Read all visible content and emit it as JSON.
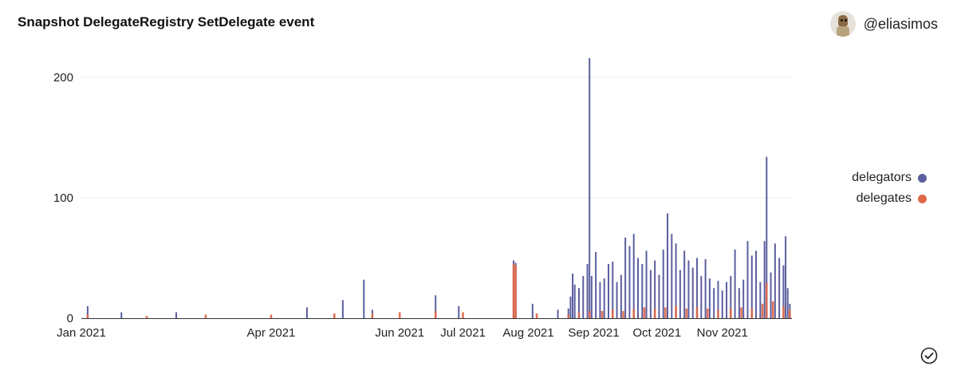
{
  "header": {
    "title": "Snapshot DelegateRegistry SetDelegate event",
    "handle": "@eliasimos"
  },
  "chart_data": {
    "type": "bar",
    "x_range": [
      "2021-01-01",
      "2021-12-04"
    ],
    "ylim": [
      0,
      200
    ],
    "y_ticks": [
      0,
      100,
      200
    ],
    "y_tick_labels": [
      "0",
      "100",
      "200"
    ],
    "x_ticks": [
      "2021-01-01",
      "2021-04-01",
      "2021-06-01",
      "2021-07-01",
      "2021-08-01",
      "2021-09-01",
      "2021-10-01",
      "2021-11-01"
    ],
    "x_tick_labels": [
      "Jan 2021",
      "Apr 2021",
      "Jun 2021",
      "Jul 2021",
      "Aug 2021",
      "Sep 2021",
      "Oct 2021",
      "Nov 2021"
    ],
    "grid": true,
    "legend_position": "right",
    "series": [
      {
        "name": "delegators",
        "color": "#5b5f9f",
        "x": [
          "2021-01-04",
          "2021-01-20",
          "2021-02-15",
          "2021-04-18",
          "2021-05-05",
          "2021-05-15",
          "2021-05-19",
          "2021-06-18",
          "2021-06-29",
          "2021-07-25",
          "2021-07-26",
          "2021-08-03",
          "2021-08-15",
          "2021-08-20",
          "2021-08-21",
          "2021-08-22",
          "2021-08-23",
          "2021-08-25",
          "2021-08-27",
          "2021-08-29",
          "2021-08-30",
          "2021-08-31",
          "2021-09-02",
          "2021-09-04",
          "2021-09-06",
          "2021-09-08",
          "2021-09-10",
          "2021-09-12",
          "2021-09-14",
          "2021-09-16",
          "2021-09-18",
          "2021-09-20",
          "2021-09-22",
          "2021-09-24",
          "2021-09-26",
          "2021-09-28",
          "2021-09-30",
          "2021-10-02",
          "2021-10-04",
          "2021-10-06",
          "2021-10-08",
          "2021-10-10",
          "2021-10-12",
          "2021-10-14",
          "2021-10-16",
          "2021-10-18",
          "2021-10-20",
          "2021-10-22",
          "2021-10-24",
          "2021-10-26",
          "2021-10-28",
          "2021-10-30",
          "2021-11-01",
          "2021-11-03",
          "2021-11-05",
          "2021-11-07",
          "2021-11-09",
          "2021-11-11",
          "2021-11-13",
          "2021-11-15",
          "2021-11-17",
          "2021-11-19",
          "2021-11-21",
          "2021-11-22",
          "2021-11-24",
          "2021-11-26",
          "2021-11-28",
          "2021-11-30",
          "2021-12-01",
          "2021-12-02",
          "2021-12-03"
        ],
        "values": [
          10,
          5,
          5,
          9,
          15,
          32,
          7,
          19,
          10,
          48,
          46,
          12,
          7,
          8,
          18,
          37,
          28,
          25,
          35,
          45,
          216,
          35,
          55,
          30,
          33,
          45,
          47,
          30,
          36,
          67,
          60,
          70,
          50,
          45,
          56,
          40,
          48,
          36,
          57,
          87,
          70,
          62,
          40,
          56,
          48,
          42,
          50,
          35,
          49,
          33,
          25,
          31,
          23,
          30,
          35,
          57,
          25,
          32,
          64,
          52,
          56,
          30,
          64,
          134,
          38,
          62,
          50,
          44,
          68,
          25,
          12
        ]
      },
      {
        "name": "delegates",
        "color": "#e0694a",
        "x": [
          "2021-01-04",
          "2021-02-01",
          "2021-03-01",
          "2021-04-01",
          "2021-05-01",
          "2021-05-19",
          "2021-06-01",
          "2021-06-18",
          "2021-07-01",
          "2021-07-25",
          "2021-07-26",
          "2021-08-05",
          "2021-08-20",
          "2021-08-25",
          "2021-08-30",
          "2021-09-05",
          "2021-09-10",
          "2021-09-15",
          "2021-09-20",
          "2021-09-25",
          "2021-09-30",
          "2021-10-05",
          "2021-10-10",
          "2021-10-15",
          "2021-10-20",
          "2021-10-25",
          "2021-10-30",
          "2021-11-05",
          "2021-11-10",
          "2021-11-15",
          "2021-11-20",
          "2021-11-22",
          "2021-11-25",
          "2021-11-30",
          "2021-12-03"
        ],
        "values": [
          3,
          2,
          3,
          3,
          4,
          4,
          5,
          6,
          5,
          45,
          44,
          4,
          3,
          5,
          6,
          6,
          7,
          6,
          8,
          9,
          8,
          9,
          10,
          8,
          9,
          8,
          7,
          8,
          9,
          8,
          12,
          29,
          14,
          10,
          7
        ]
      }
    ]
  }
}
